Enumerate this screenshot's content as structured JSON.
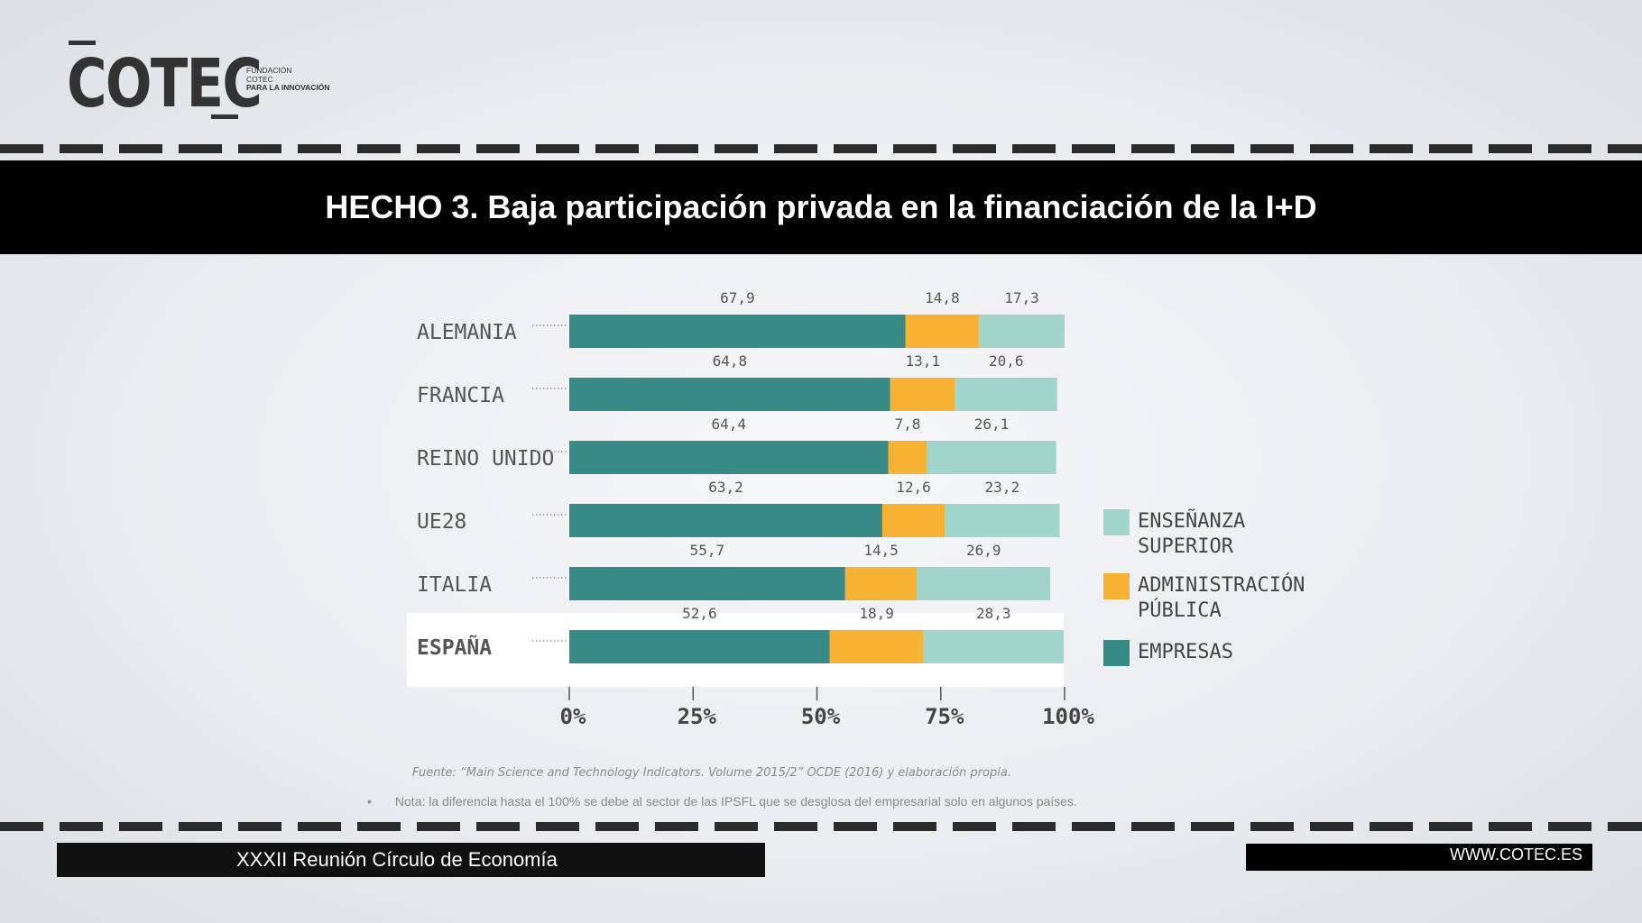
{
  "logo": {
    "name": "COTEC",
    "sub1": "FUNDACIÓN",
    "sub2": "COTEC",
    "sub3": "PARA LA INNOVACIÓN"
  },
  "title": "HECHO 3. Baja participación privada en la financiación de la I+D",
  "chart_data": {
    "type": "bar",
    "orientation": "horizontal",
    "stacked": true,
    "categories": [
      "ALEMANIA",
      "FRANCIA",
      "REINO UNIDO",
      "UE28",
      "ITALIA",
      "ESPAÑA"
    ],
    "highlighted_category": "ESPAÑA",
    "series": [
      {
        "name": "EMPRESAS",
        "color": "#388a86",
        "values": [
          67.9,
          64.8,
          64.4,
          63.2,
          55.7,
          52.6
        ]
      },
      {
        "name": "ADMINISTRACIÓN PÚBLICA",
        "color": "#f7b133",
        "values": [
          14.8,
          13.1,
          7.8,
          12.6,
          14.5,
          18.9
        ]
      },
      {
        "name": "ENSEÑANZA SUPERIOR",
        "color": "#a1d5cb",
        "values": [
          17.3,
          20.6,
          26.1,
          23.2,
          26.9,
          28.3
        ]
      }
    ],
    "value_labels": [
      [
        "67,9",
        "14,8",
        "17,3"
      ],
      [
        "64,8",
        "13,1",
        "20,6"
      ],
      [
        "64,4",
        "7,8",
        "26,1"
      ],
      [
        "63,2",
        "12,6",
        "23,2"
      ],
      [
        "55,7",
        "14,5",
        "26,9"
      ],
      [
        "52,6",
        "18,9",
        "28,3"
      ]
    ],
    "xlim": [
      0,
      100
    ],
    "xticks": [
      "0%",
      "25%",
      "50%",
      "75%",
      "100%"
    ],
    "legend": {
      "placement": "right",
      "items": [
        {
          "lines": [
            "ENSEÑANZA",
            "SUPERIOR"
          ],
          "color": "#a1d5cb"
        },
        {
          "lines": [
            "ADMINISTRACIÓN",
            "PÚBLICA"
          ],
          "color": "#f7b133"
        },
        {
          "lines": [
            "EMPRESAS"
          ],
          "color": "#388a86"
        }
      ]
    }
  },
  "source": "Fuente: “Main Science and Technology Indicators. Volume 2015/2” OCDE (2016) y elaboración propia.",
  "note_bullet": "•",
  "note": "Nota: la diferencia hasta el 100% se debe al sector de las IPSFL que se desglosa del empresarial solo en algunos países.",
  "footer": {
    "left": "XXXII Reunión Círculo de Economía",
    "right": "WWW.COTEC.ES"
  }
}
